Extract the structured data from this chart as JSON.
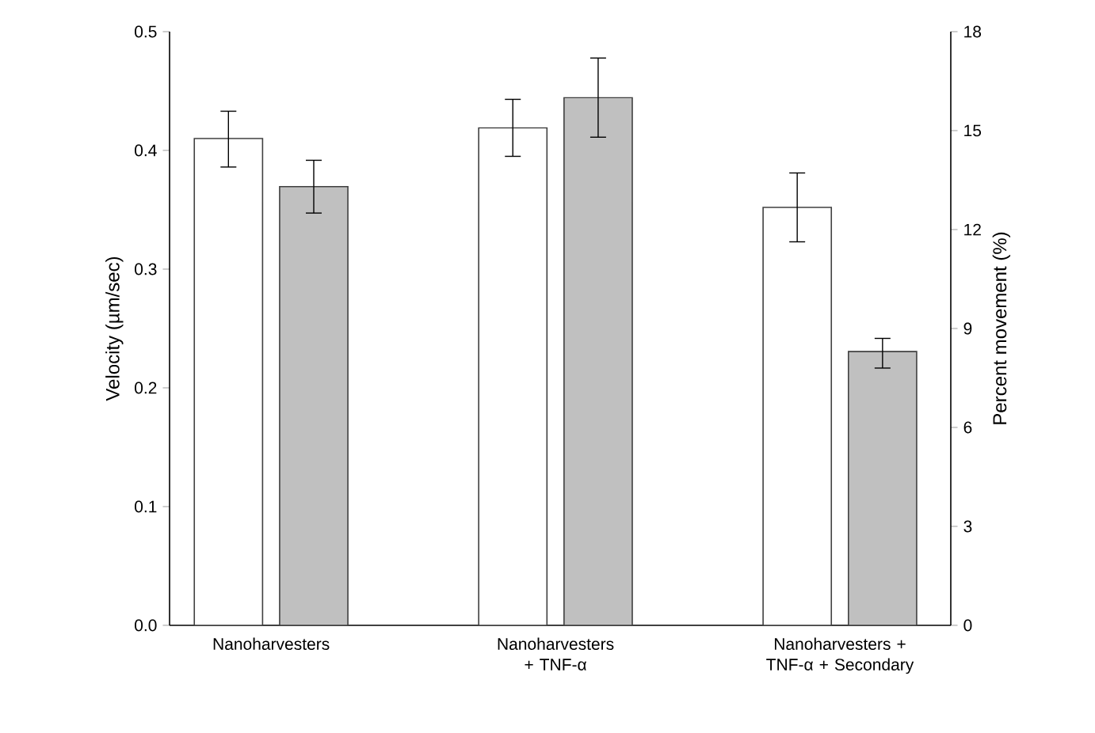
{
  "chart_data": {
    "type": "bar",
    "categories": [
      "Nanoharvesters",
      "Nanoharvesters + TNF-α",
      "Nanoharvesters + TNF-α + Secondary"
    ],
    "ylabel": "Velocity (µm/sec)",
    "y2label": "Percent movement (%)",
    "ylim": [
      0,
      0.5
    ],
    "yticks": [
      {
        "value": 0,
        "label": "0.0"
      },
      0.1,
      0.2,
      0.3,
      0.4,
      0.5
    ],
    "y2lim": [
      0,
      18
    ],
    "y2ticks": [
      0,
      3,
      6,
      9,
      12,
      15,
      18
    ],
    "series": [
      {
        "color": "#ffffff",
        "values": [
          0.41,
          0.419,
          0.352
        ],
        "errors": [
          [
            0.386,
            0.433
          ],
          [
            0.395,
            0.443
          ],
          [
            0.323,
            0.381
          ]
        ]
      },
      {
        "color": "#c0c0c0",
        "axis": "y2",
        "values": [
          13.3,
          16.0,
          8.3
        ],
        "errors": [
          [
            12.5,
            14.1
          ],
          [
            14.8,
            17.2
          ],
          [
            7.8,
            8.7
          ]
        ]
      }
    ]
  }
}
